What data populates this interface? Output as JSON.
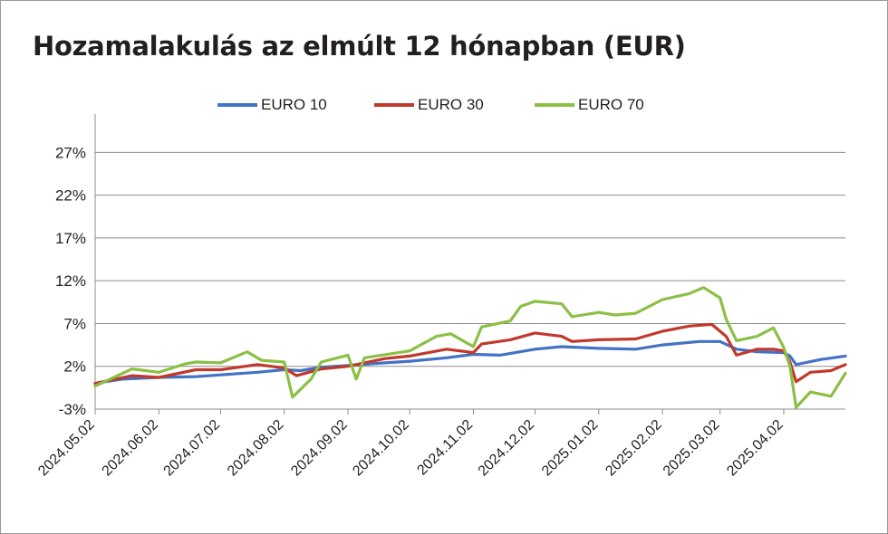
{
  "chart_data": {
    "type": "line",
    "title": "Hozamalakulás az elmúlt 12 hónapban (EUR)",
    "xlabel": "",
    "ylabel": "",
    "x_ticks": [
      "2024.05.02",
      "2024.06.02",
      "2024.07.02",
      "2024.08.02",
      "2024.09.02",
      "2024.10.02",
      "2024.11.02",
      "2024.12.02",
      "2025.01.02",
      "2025.02.02",
      "2025.03.02",
      "2025.04.02"
    ],
    "y_ticks": [
      -3,
      2,
      7,
      12,
      17,
      22,
      27
    ],
    "y_tick_labels": [
      "-3%",
      "2%",
      "7%",
      "12%",
      "17%",
      "22%",
      "27%"
    ],
    "ylim": [
      -3,
      30
    ],
    "grid": "horizontal",
    "legend_position": "top",
    "series": [
      {
        "name": "EURO 10",
        "color": "#4472c4",
        "points": [
          [
            "2024-05-02",
            0.0
          ],
          [
            "2024-05-15",
            0.5
          ],
          [
            "2024-06-02",
            0.7
          ],
          [
            "2024-06-20",
            0.8
          ],
          [
            "2024-07-02",
            1.0
          ],
          [
            "2024-07-20",
            1.3
          ],
          [
            "2024-08-02",
            1.6
          ],
          [
            "2024-08-10",
            1.5
          ],
          [
            "2024-08-20",
            1.9
          ],
          [
            "2024-09-02",
            2.1
          ],
          [
            "2024-09-20",
            2.4
          ],
          [
            "2024-10-02",
            2.6
          ],
          [
            "2024-10-20",
            3.0
          ],
          [
            "2024-11-02",
            3.4
          ],
          [
            "2024-11-15",
            3.3
          ],
          [
            "2024-12-02",
            4.0
          ],
          [
            "2024-12-15",
            4.3
          ],
          [
            "2025-01-02",
            4.1
          ],
          [
            "2025-01-20",
            4.0
          ],
          [
            "2025-02-02",
            4.5
          ],
          [
            "2025-02-20",
            4.9
          ],
          [
            "2025-03-02",
            4.9
          ],
          [
            "2025-03-10",
            4.0
          ],
          [
            "2025-03-20",
            3.7
          ],
          [
            "2025-04-02",
            3.6
          ],
          [
            "2025-04-05",
            3.2
          ],
          [
            "2025-04-08",
            2.2
          ],
          [
            "2025-04-20",
            2.8
          ],
          [
            "2025-05-02",
            3.2
          ]
        ]
      },
      {
        "name": "EURO 30",
        "color": "#c0392b",
        "points": [
          [
            "2024-05-02",
            0.0
          ],
          [
            "2024-05-20",
            0.9
          ],
          [
            "2024-06-02",
            0.7
          ],
          [
            "2024-06-20",
            1.6
          ],
          [
            "2024-07-02",
            1.6
          ],
          [
            "2024-07-20",
            2.2
          ],
          [
            "2024-08-02",
            1.8
          ],
          [
            "2024-08-08",
            0.9
          ],
          [
            "2024-08-20",
            1.7
          ],
          [
            "2024-09-02",
            2.0
          ],
          [
            "2024-09-20",
            2.9
          ],
          [
            "2024-10-02",
            3.2
          ],
          [
            "2024-10-20",
            4.0
          ],
          [
            "2024-11-02",
            3.6
          ],
          [
            "2024-11-06",
            4.6
          ],
          [
            "2024-11-20",
            5.1
          ],
          [
            "2024-12-02",
            5.9
          ],
          [
            "2024-12-15",
            5.5
          ],
          [
            "2024-12-20",
            4.9
          ],
          [
            "2025-01-02",
            5.1
          ],
          [
            "2025-01-20",
            5.2
          ],
          [
            "2025-02-02",
            6.1
          ],
          [
            "2025-02-15",
            6.7
          ],
          [
            "2025-02-26",
            6.9
          ],
          [
            "2025-03-05",
            5.5
          ],
          [
            "2025-03-10",
            3.3
          ],
          [
            "2025-03-20",
            4.0
          ],
          [
            "2025-03-28",
            4.0
          ],
          [
            "2025-04-02",
            3.8
          ],
          [
            "2025-04-05",
            2.5
          ],
          [
            "2025-04-08",
            0.2
          ],
          [
            "2025-04-15",
            1.3
          ],
          [
            "2025-04-25",
            1.5
          ],
          [
            "2025-05-02",
            2.2
          ]
        ]
      },
      {
        "name": "EURO 70",
        "color": "#8bbf45",
        "points": [
          [
            "2024-05-02",
            -0.3
          ],
          [
            "2024-05-20",
            1.7
          ],
          [
            "2024-06-02",
            1.3
          ],
          [
            "2024-06-15",
            2.3
          ],
          [
            "2024-06-20",
            2.5
          ],
          [
            "2024-07-02",
            2.4
          ],
          [
            "2024-07-15",
            3.7
          ],
          [
            "2024-07-22",
            2.7
          ],
          [
            "2024-08-02",
            2.5
          ],
          [
            "2024-08-06",
            -1.6
          ],
          [
            "2024-08-15",
            0.5
          ],
          [
            "2024-08-20",
            2.5
          ],
          [
            "2024-09-02",
            3.3
          ],
          [
            "2024-09-06",
            0.5
          ],
          [
            "2024-09-10",
            3.0
          ],
          [
            "2024-10-02",
            3.8
          ],
          [
            "2024-10-15",
            5.5
          ],
          [
            "2024-10-22",
            5.8
          ],
          [
            "2024-11-02",
            4.3
          ],
          [
            "2024-11-06",
            6.6
          ],
          [
            "2024-11-20",
            7.3
          ],
          [
            "2024-11-25",
            9.0
          ],
          [
            "2024-12-02",
            9.6
          ],
          [
            "2024-12-15",
            9.3
          ],
          [
            "2024-12-20",
            7.8
          ],
          [
            "2025-01-02",
            8.3
          ],
          [
            "2025-01-10",
            8.0
          ],
          [
            "2025-01-20",
            8.2
          ],
          [
            "2025-02-02",
            9.8
          ],
          [
            "2025-02-15",
            10.5
          ],
          [
            "2025-02-22",
            11.2
          ],
          [
            "2025-03-02",
            10.0
          ],
          [
            "2025-03-05",
            7.5
          ],
          [
            "2025-03-10",
            5.0
          ],
          [
            "2025-03-20",
            5.5
          ],
          [
            "2025-03-28",
            6.5
          ],
          [
            "2025-04-02",
            4.2
          ],
          [
            "2025-04-05",
            2.0
          ],
          [
            "2025-04-08",
            -2.8
          ],
          [
            "2025-04-15",
            -1.0
          ],
          [
            "2025-04-25",
            -1.5
          ],
          [
            "2025-05-02",
            1.2
          ]
        ]
      }
    ]
  }
}
